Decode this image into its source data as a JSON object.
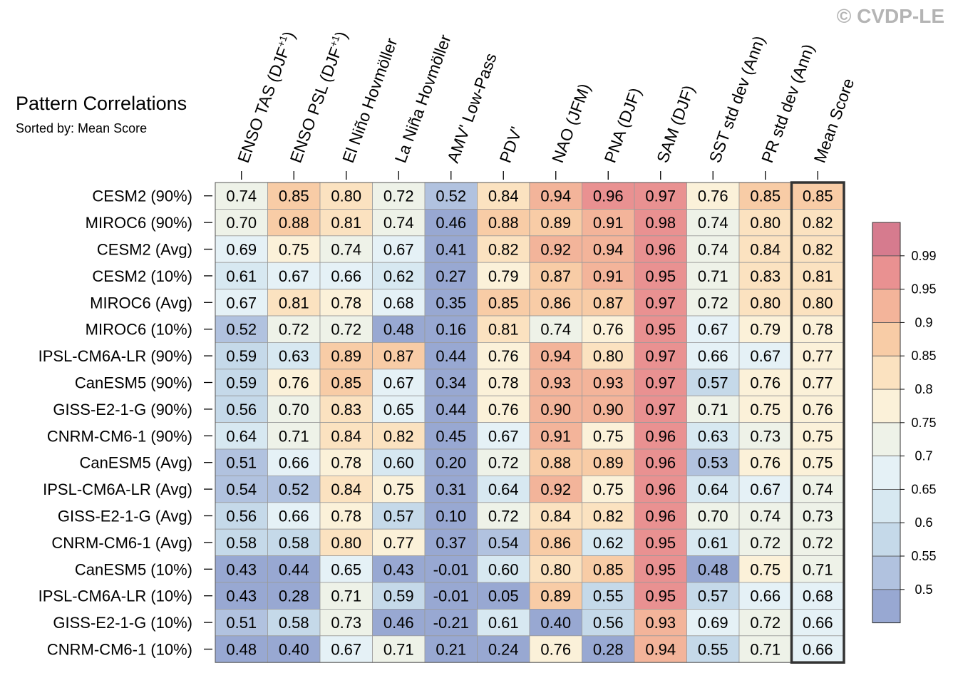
{
  "watermark": "© CVDP-LE",
  "chart_data": {
    "type": "heatmap",
    "title": "Pattern Correlations",
    "subtitle": "Sorted by: Mean Score",
    "columns": [
      "ENSO TAS (DJF+1)",
      "ENSO PSL (DJF+1)",
      "El Niño Hovmöller",
      "La Niña Hovmöller",
      "AMV' Low-Pass",
      "PDV'",
      "NAO (JFM)",
      "PNA (DJF)",
      "SAM (DJF)",
      "SST std dev (Ann)",
      "PR std dev (Ann)",
      "Mean Score"
    ],
    "rows": [
      {
        "label": "CESM2 (90%)",
        "values": [
          0.74,
          0.85,
          0.8,
          0.72,
          0.52,
          0.84,
          0.94,
          0.96,
          0.97,
          0.76,
          0.85,
          0.85
        ]
      },
      {
        "label": "MIROC6 (90%)",
        "values": [
          0.7,
          0.88,
          0.81,
          0.74,
          0.46,
          0.88,
          0.89,
          0.91,
          0.98,
          0.74,
          0.8,
          0.82
        ]
      },
      {
        "label": "CESM2 (Avg)",
        "values": [
          0.69,
          0.75,
          0.74,
          0.67,
          0.41,
          0.82,
          0.92,
          0.94,
          0.96,
          0.74,
          0.84,
          0.82
        ]
      },
      {
        "label": "CESM2 (10%)",
        "values": [
          0.61,
          0.67,
          0.66,
          0.62,
          0.27,
          0.79,
          0.87,
          0.91,
          0.95,
          0.71,
          0.83,
          0.81
        ]
      },
      {
        "label": "MIROC6 (Avg)",
        "values": [
          0.67,
          0.81,
          0.78,
          0.68,
          0.35,
          0.85,
          0.86,
          0.87,
          0.97,
          0.72,
          0.8,
          0.8
        ]
      },
      {
        "label": "MIROC6 (10%)",
        "values": [
          0.52,
          0.72,
          0.72,
          0.48,
          0.16,
          0.81,
          0.74,
          0.76,
          0.95,
          0.67,
          0.79,
          0.78
        ]
      },
      {
        "label": "IPSL-CM6A-LR (90%)",
        "values": [
          0.59,
          0.63,
          0.89,
          0.87,
          0.44,
          0.76,
          0.94,
          0.8,
          0.97,
          0.66,
          0.67,
          0.77
        ]
      },
      {
        "label": "CanESM5 (90%)",
        "values": [
          0.59,
          0.76,
          0.85,
          0.67,
          0.34,
          0.78,
          0.93,
          0.93,
          0.97,
          0.57,
          0.76,
          0.77
        ]
      },
      {
        "label": "GISS-E2-1-G (90%)",
        "values": [
          0.56,
          0.7,
          0.83,
          0.65,
          0.44,
          0.76,
          0.9,
          0.9,
          0.97,
          0.71,
          0.75,
          0.76
        ]
      },
      {
        "label": "CNRM-CM6-1 (90%)",
        "values": [
          0.64,
          0.71,
          0.84,
          0.82,
          0.45,
          0.67,
          0.91,
          0.75,
          0.96,
          0.63,
          0.73,
          0.75
        ]
      },
      {
        "label": "CanESM5 (Avg)",
        "values": [
          0.51,
          0.66,
          0.78,
          0.6,
          0.2,
          0.72,
          0.88,
          0.89,
          0.96,
          0.53,
          0.76,
          0.75
        ]
      },
      {
        "label": "IPSL-CM6A-LR (Avg)",
        "values": [
          0.54,
          0.52,
          0.84,
          0.75,
          0.31,
          0.64,
          0.92,
          0.75,
          0.96,
          0.64,
          0.67,
          0.74
        ]
      },
      {
        "label": "GISS-E2-1-G (Avg)",
        "values": [
          0.56,
          0.66,
          0.78,
          0.57,
          0.1,
          0.72,
          0.84,
          0.82,
          0.96,
          0.7,
          0.74,
          0.73
        ]
      },
      {
        "label": "CNRM-CM6-1 (Avg)",
        "values": [
          0.58,
          0.58,
          0.8,
          0.77,
          0.37,
          0.54,
          0.86,
          0.62,
          0.95,
          0.61,
          0.72,
          0.72
        ]
      },
      {
        "label": "CanESM5 (10%)",
        "values": [
          0.43,
          0.44,
          0.65,
          0.43,
          -0.01,
          0.6,
          0.8,
          0.85,
          0.95,
          0.48,
          0.75,
          0.71
        ]
      },
      {
        "label": "IPSL-CM6A-LR (10%)",
        "values": [
          0.43,
          0.28,
          0.71,
          0.59,
          -0.01,
          0.05,
          0.89,
          0.55,
          0.95,
          0.57,
          0.66,
          0.68
        ]
      },
      {
        "label": "GISS-E2-1-G (10%)",
        "values": [
          0.51,
          0.58,
          0.73,
          0.46,
          -0.21,
          0.61,
          0.4,
          0.56,
          0.93,
          0.69,
          0.72,
          0.66
        ]
      },
      {
        "label": "CNRM-CM6-1 (10%)",
        "values": [
          0.48,
          0.4,
          0.67,
          0.71,
          0.21,
          0.24,
          0.76,
          0.28,
          0.94,
          0.55,
          0.71,
          0.66
        ]
      }
    ],
    "colorbar": {
      "levels": [
        0.5,
        0.55,
        0.6,
        0.65,
        0.7,
        0.75,
        0.8,
        0.85,
        0.9,
        0.95,
        0.99
      ],
      "labels": [
        "0.5",
        "0.55",
        "0.6",
        "0.65",
        "0.7",
        "0.75",
        "0.8",
        "0.85",
        "0.9",
        "0.95",
        "0.99"
      ],
      "colors": [
        "#98a8d2",
        "#b1c2df",
        "#c5d9e9",
        "#d7e8f1",
        "#e5f1f6",
        "#eef2e8",
        "#fbf1d9",
        "#fbe2c0",
        "#f8cca6",
        "#f3b49a",
        "#e99191",
        "#d67b8e"
      ]
    },
    "highlighted_column": "Mean Score"
  }
}
